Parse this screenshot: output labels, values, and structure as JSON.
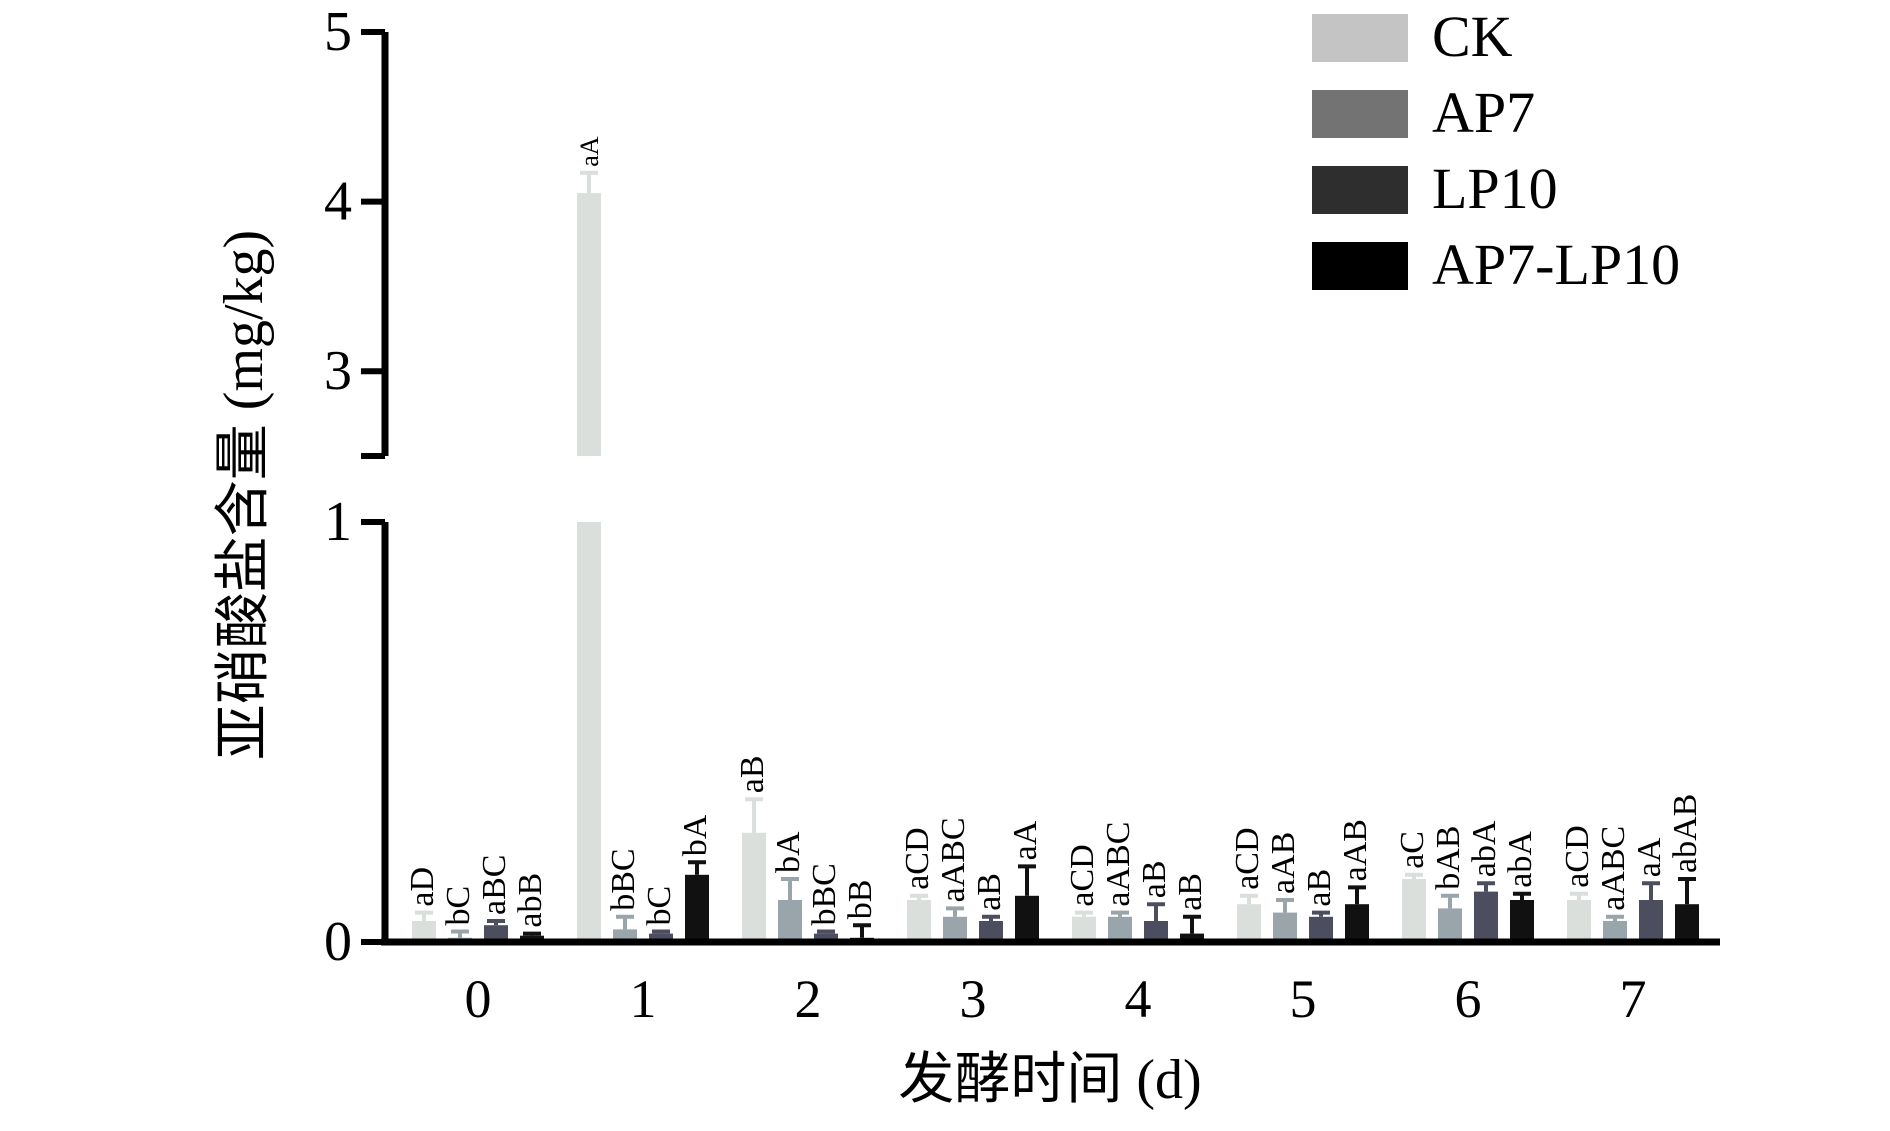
{
  "chart_data": {
    "type": "bar",
    "title": "",
    "xlabel": "发酵时间 (d)",
    "ylabel": "亚硝酸盐含量 (mg/kg)",
    "categories": [
      "0",
      "1",
      "2",
      "3",
      "4",
      "5",
      "6",
      "7"
    ],
    "y_axis": {
      "broken": true,
      "lower_segment": {
        "min": 0,
        "max": 1,
        "ticks": [
          "0",
          "1"
        ]
      },
      "upper_segment": {
        "min": 2.5,
        "max": 5,
        "ticks": [
          "3",
          "4",
          "5"
        ]
      }
    },
    "legend_position": "top-right",
    "series": [
      {
        "name": "CK",
        "color": "#dadfdb",
        "legend_color": "#c4c4c4",
        "values": [
          0.05,
          4.05,
          0.26,
          0.1,
          0.06,
          0.09,
          0.15,
          0.1
        ],
        "errors": [
          0.02,
          0.12,
          0.08,
          0.01,
          0.01,
          0.02,
          0.01,
          0.015
        ],
        "labels": [
          "aD",
          "aA",
          "aB",
          "aCD",
          "aCD",
          "aCD",
          "aC",
          "aCD"
        ]
      },
      {
        "name": "AP7",
        "color": "#9aa4ab",
        "legend_color": "#737373",
        "values": [
          0.01,
          0.03,
          0.1,
          0.06,
          0.06,
          0.07,
          0.08,
          0.05
        ],
        "errors": [
          0.015,
          0.03,
          0.05,
          0.02,
          0.01,
          0.03,
          0.03,
          0.01
        ],
        "labels": [
          "bC",
          "bBC",
          "bA",
          "aABC",
          "aABC",
          "aAB",
          "bAB",
          "aABC"
        ]
      },
      {
        "name": "LP10",
        "color": "#4c4e60",
        "legend_color": "#2e2e2e",
        "values": [
          0.04,
          0.02,
          0.02,
          0.05,
          0.05,
          0.06,
          0.12,
          0.1
        ],
        "errors": [
          0.01,
          0.005,
          0.005,
          0.01,
          0.04,
          0.01,
          0.02,
          0.04
        ],
        "labels": [
          "aBC",
          "bC",
          "bBC",
          "aB",
          "aB",
          "aB",
          "abA",
          "aA"
        ]
      },
      {
        "name": "AP7-LP10",
        "color": "#111111",
        "legend_color": "#000000",
        "values": [
          0.015,
          0.16,
          0.01,
          0.11,
          0.02,
          0.09,
          0.1,
          0.09
        ],
        "errors": [
          0.005,
          0.03,
          0.03,
          0.07,
          0.04,
          0.04,
          0.015,
          0.06
        ],
        "labels": [
          "abB",
          "bA",
          "bB",
          "aA",
          "aB",
          "aAB",
          "abA",
          "abAB"
        ]
      }
    ]
  }
}
